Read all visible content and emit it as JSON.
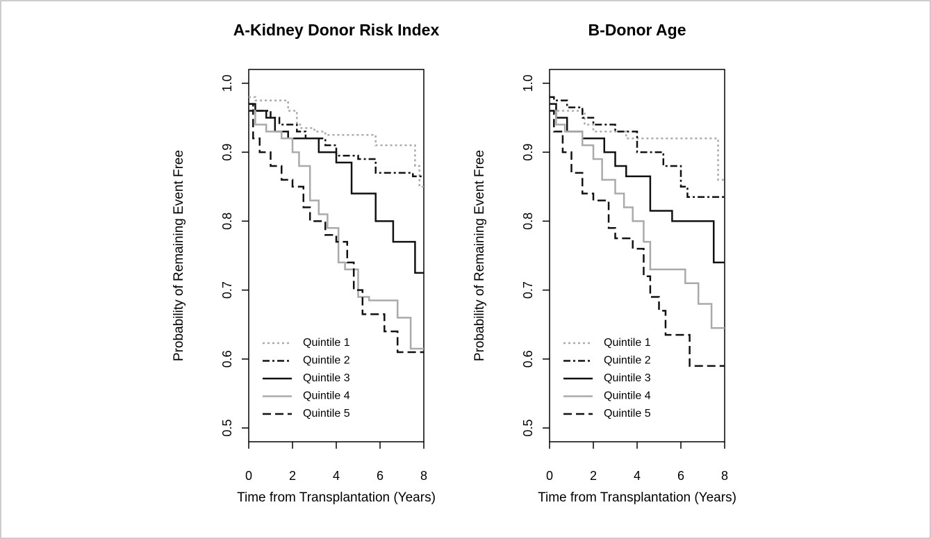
{
  "chart_data": [
    {
      "type": "step",
      "title": "A-Kidney Donor Risk Index",
      "x_label": "Time from Transplantation (Years)",
      "y_label": "Probability of Remaining Event Free",
      "xlim": [
        0,
        8
      ],
      "ylim": [
        0.48,
        1.02
      ],
      "xticks": [
        0,
        2,
        4,
        6,
        8
      ],
      "yticks": [
        0.5,
        0.6,
        0.7,
        0.8,
        0.9,
        {
          "value": 1.0,
          "label": "1.0"
        }
      ],
      "legend": "lower left",
      "series": [
        {
          "name": "Quintile 1",
          "color": "#aaaaaa",
          "dash": "dotted",
          "x": [
            0,
            0.3,
            1.8,
            2.2,
            2.4,
            3,
            3.5,
            5.8,
            7.6,
            7.8,
            8
          ],
          "values": [
            0.98,
            0.975,
            0.96,
            0.94,
            0.935,
            0.93,
            0.925,
            0.91,
            0.88,
            0.85,
            0.85
          ]
        },
        {
          "name": "Quintile 2",
          "color": "#111111",
          "dash": "dashdot",
          "x": [
            0,
            0.2,
            1,
            1.4,
            2.2,
            2.6,
            3.5,
            4,
            5,
            5.8,
            7.5,
            8
          ],
          "values": [
            0.97,
            0.96,
            0.95,
            0.94,
            0.93,
            0.92,
            0.91,
            0.895,
            0.89,
            0.87,
            0.865,
            0.865
          ]
        },
        {
          "name": "Quintile 3",
          "color": "#111111",
          "dash": "solid",
          "x": [
            0,
            0.3,
            0.8,
            1.2,
            1.8,
            3.2,
            4,
            4.7,
            5.8,
            6.6,
            7.6,
            8
          ],
          "values": [
            0.97,
            0.96,
            0.95,
            0.93,
            0.92,
            0.9,
            0.885,
            0.84,
            0.8,
            0.77,
            0.725,
            0.725
          ]
        },
        {
          "name": "Quintile 4",
          "color": "#aaaaaa",
          "dash": "solid",
          "x": [
            0,
            0.3,
            0.8,
            1.5,
            2,
            2.3,
            2.8,
            3.2,
            3.6,
            4.1,
            4.4,
            5,
            5.5,
            6.8,
            7.4,
            8
          ],
          "values": [
            0.96,
            0.94,
            0.93,
            0.92,
            0.9,
            0.88,
            0.83,
            0.81,
            0.79,
            0.74,
            0.73,
            0.69,
            0.685,
            0.66,
            0.615,
            0.615
          ]
        },
        {
          "name": "Quintile 5",
          "color": "#111111",
          "dash": "dashed",
          "x": [
            0,
            0.2,
            0.5,
            1,
            1.5,
            2,
            2.5,
            2.8,
            3.5,
            4,
            4.5,
            4.8,
            5.2,
            6.2,
            6.8,
            8
          ],
          "values": [
            0.96,
            0.92,
            0.9,
            0.88,
            0.86,
            0.85,
            0.82,
            0.8,
            0.78,
            0.77,
            0.74,
            0.7,
            0.665,
            0.64,
            0.61,
            0.61
          ]
        }
      ]
    },
    {
      "type": "step",
      "title": "B-Donor Age",
      "x_label": "Time from Transplantation (Years)",
      "y_label": "Probability of Remaining Event Free",
      "xlim": [
        0,
        8
      ],
      "ylim": [
        0.48,
        1.02
      ],
      "xticks": [
        0,
        2,
        4,
        6,
        8
      ],
      "yticks": [
        0.5,
        0.6,
        0.7,
        0.8,
        0.9,
        {
          "value": 1.0,
          "label": "1.0"
        }
      ],
      "legend": "lower left",
      "series": [
        {
          "name": "Quintile 1",
          "color": "#aaaaaa",
          "dash": "dotted",
          "x": [
            0,
            0.3,
            1.6,
            2,
            3.5,
            7.7,
            8
          ],
          "values": [
            0.97,
            0.96,
            0.94,
            0.93,
            0.92,
            0.86,
            0.86
          ]
        },
        {
          "name": "Quintile 2",
          "color": "#111111",
          "dash": "dashdot",
          "x": [
            0,
            0.2,
            0.8,
            1.5,
            2,
            3,
            4,
            5.2,
            6,
            6.3,
            8
          ],
          "values": [
            0.98,
            0.975,
            0.965,
            0.95,
            0.94,
            0.93,
            0.9,
            0.88,
            0.85,
            0.835,
            0.835
          ]
        },
        {
          "name": "Quintile 3",
          "color": "#111111",
          "dash": "solid",
          "x": [
            0,
            0.3,
            0.8,
            1.5,
            2.5,
            3,
            3.5,
            4.6,
            5.6,
            7.5,
            8
          ],
          "values": [
            0.97,
            0.95,
            0.93,
            0.92,
            0.9,
            0.88,
            0.865,
            0.815,
            0.8,
            0.74,
            0.74
          ]
        },
        {
          "name": "Quintile 4",
          "color": "#aaaaaa",
          "dash": "solid",
          "x": [
            0,
            0.3,
            0.7,
            1.5,
            2,
            2.4,
            3,
            3.4,
            3.8,
            4.3,
            4.6,
            6.2,
            6.8,
            7.4,
            8
          ],
          "values": [
            0.96,
            0.94,
            0.93,
            0.91,
            0.89,
            0.86,
            0.84,
            0.82,
            0.8,
            0.77,
            0.73,
            0.71,
            0.68,
            0.645,
            0.645
          ]
        },
        {
          "name": "Quintile 5",
          "color": "#111111",
          "dash": "dashed",
          "x": [
            0,
            0.2,
            0.6,
            1,
            1.5,
            2,
            2.7,
            3,
            3.8,
            4.3,
            4.6,
            5,
            5.3,
            6.4,
            8
          ],
          "values": [
            0.96,
            0.93,
            0.9,
            0.87,
            0.84,
            0.83,
            0.79,
            0.775,
            0.76,
            0.72,
            0.69,
            0.67,
            0.635,
            0.59,
            0.59
          ]
        }
      ]
    }
  ]
}
